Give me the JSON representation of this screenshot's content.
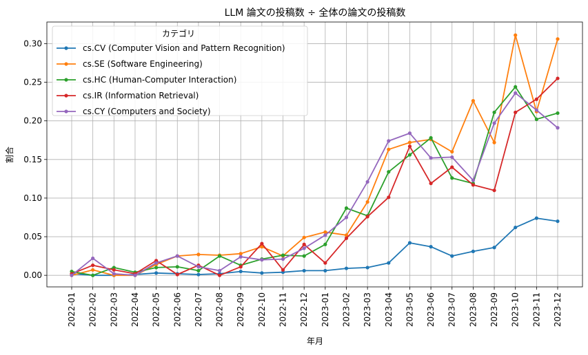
{
  "chart_data": {
    "type": "line",
    "title": "LLM 論文の投稿数 ÷ 全体の論文の投稿数",
    "xlabel": "年月",
    "ylabel": "割合",
    "ylim": [
      -0.015,
      0.328
    ],
    "yticks": [
      0.0,
      0.05,
      0.1,
      0.15,
      0.2,
      0.25,
      0.3
    ],
    "ytick_labels": [
      "0.00",
      "0.05",
      "0.10",
      "0.15",
      "0.20",
      "0.25",
      "0.30"
    ],
    "grid": true,
    "legend_title": "カテゴリ",
    "legend_position": "top-left",
    "categories": [
      "2022-01",
      "2022-02",
      "2022-03",
      "2022-04",
      "2022-05",
      "2022-06",
      "2022-07",
      "2022-08",
      "2022-09",
      "2022-10",
      "2022-11",
      "2022-12",
      "2023-01",
      "2023-02",
      "2023-03",
      "2023-04",
      "2023-05",
      "2023-06",
      "2023-07",
      "2023-08",
      "2023-09",
      "2023-10",
      "2023-11",
      "2023-12"
    ],
    "series": [
      {
        "name": "cs.CV (Computer Vision and Pattern Recognition)",
        "color": "#1f77b4",
        "values": [
          0.002,
          0.0,
          0.0,
          0.001,
          0.003,
          0.002,
          0.001,
          0.002,
          0.005,
          0.003,
          0.004,
          0.006,
          0.006,
          0.009,
          0.01,
          0.016,
          0.042,
          0.037,
          0.025,
          0.031,
          0.036,
          0.062,
          0.074,
          0.07
        ]
      },
      {
        "name": "cs.SE (Software Engineering)",
        "color": "#ff7f0e",
        "values": [
          0.0,
          0.007,
          0.0,
          0.0,
          0.014,
          0.025,
          0.027,
          0.026,
          0.028,
          0.037,
          0.025,
          0.049,
          0.056,
          0.052,
          0.095,
          0.163,
          0.172,
          0.176,
          0.16,
          0.226,
          0.172,
          0.311,
          0.212,
          0.306
        ]
      },
      {
        "name": "cs.HC (Human-Computer Interaction)",
        "color": "#2ca02c",
        "values": [
          0.005,
          0.0,
          0.01,
          0.004,
          0.01,
          0.011,
          0.006,
          0.025,
          0.013,
          0.021,
          0.026,
          0.025,
          0.04,
          0.087,
          0.077,
          0.134,
          0.156,
          0.178,
          0.126,
          0.119,
          0.211,
          0.244,
          0.202,
          0.21
        ]
      },
      {
        "name": "cs.IR (Information Retrieval)",
        "color": "#d62728",
        "values": [
          0.002,
          0.013,
          0.007,
          0.002,
          0.019,
          0.001,
          0.013,
          0.0,
          0.011,
          0.041,
          0.007,
          0.04,
          0.016,
          0.048,
          0.076,
          0.101,
          0.167,
          0.119,
          0.14,
          0.117,
          0.11,
          0.211,
          0.228,
          0.255
        ]
      },
      {
        "name": "cs.CY (Computers and Society)",
        "color": "#9467bd",
        "values": [
          0.0,
          0.022,
          0.002,
          0.0,
          0.016,
          0.025,
          0.011,
          0.006,
          0.024,
          0.02,
          0.021,
          0.035,
          0.052,
          0.075,
          0.121,
          0.174,
          0.184,
          0.152,
          0.153,
          0.123,
          0.197,
          0.236,
          0.214,
          0.191
        ]
      }
    ]
  }
}
